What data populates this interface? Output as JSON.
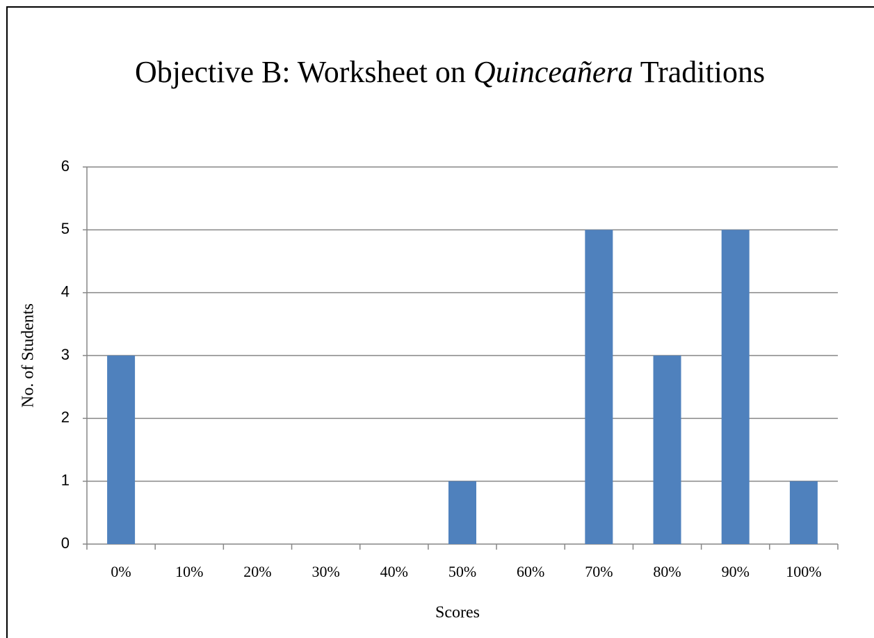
{
  "chart_data": {
    "type": "bar",
    "title": [
      {
        "text": "Objective B: Worksheet on "
      },
      {
        "text": "Quinceañera",
        "italic": true
      },
      {
        "text": " Traditions"
      }
    ],
    "x_label": "Scores",
    "y_label": "No. of Students",
    "categories": [
      "0%",
      "10%",
      "20%",
      "30%",
      "40%",
      "50%",
      "60%",
      "70%",
      "80%",
      "90%",
      "100%"
    ],
    "values": [
      3,
      0,
      0,
      0,
      0,
      1,
      0,
      5,
      3,
      5,
      1
    ],
    "color": "#4f81bd",
    "ylim": [
      0,
      6
    ],
    "yticks": [
      0,
      1,
      2,
      3,
      4,
      5,
      6
    ],
    "grid": true
  }
}
